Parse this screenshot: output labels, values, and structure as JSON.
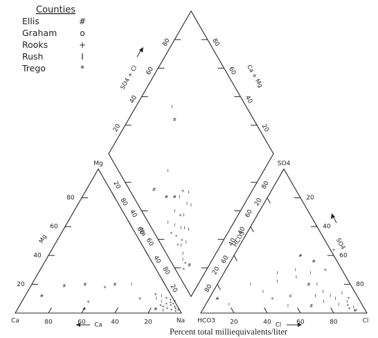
{
  "legend": {
    "title": "Counties",
    "items": [
      {
        "name": "Ellis",
        "symbol": "#"
      },
      {
        "name": "Graham",
        "symbol": "o"
      },
      {
        "name": "Rooks",
        "symbol": "+"
      },
      {
        "name": "Rush",
        "symbol": "I"
      },
      {
        "name": "Trego",
        "symbol": "*"
      }
    ]
  },
  "caption": "Percent total milliequivalents/liter",
  "cation_triangle": {
    "apex_label": "Mg",
    "left_corner_label": "Ca",
    "right_corner_label": "Na",
    "left_axis_name": "Mg",
    "right_axis_name": "Na",
    "bottom_axis_name": "Ca",
    "left_ticks": [
      "20",
      "40",
      "60",
      "80"
    ],
    "right_ticks": [
      "20",
      "40",
      "60",
      "80"
    ],
    "bottom_ticks": [
      "80",
      "60",
      "40",
      "20"
    ]
  },
  "anion_triangle": {
    "apex_label": "SO4",
    "left_corner_label": "HCO3",
    "right_corner_label": "Cl",
    "left_axis_name": "HCO3",
    "right_axis_name": "SO4",
    "bottom_axis_name": "Cl",
    "left_ticks": [
      "80",
      "60",
      "40",
      "20"
    ],
    "right_ticks": [
      "80",
      "60",
      "40",
      "20"
    ],
    "bottom_ticks": [
      "20",
      "40",
      "60",
      "80"
    ]
  },
  "diamond": {
    "upper_left_axis_name": "SO4 + Cl",
    "upper_right_axis_name": "Ca + Mg",
    "upper_left_ticks": [
      "80",
      "60",
      "40",
      "20"
    ],
    "upper_right_ticks": [
      "80",
      "60",
      "40",
      "20"
    ]
  },
  "points": {
    "cation": [
      {
        "s": "#",
        "na": 0.83,
        "mg": 0.03
      },
      {
        "s": "*",
        "na": 0.85,
        "mg": 0.05
      },
      {
        "s": "*",
        "na": 0.87,
        "mg": 0.04
      },
      {
        "s": "*",
        "na": 0.88,
        "mg": 0.06
      },
      {
        "s": "*",
        "na": 0.9,
        "mg": 0.03
      },
      {
        "s": "*",
        "na": 0.91,
        "mg": 0.05
      },
      {
        "s": "*",
        "na": 0.93,
        "mg": 0.02
      },
      {
        "s": "*",
        "na": 0.95,
        "mg": 0.03
      },
      {
        "s": "*",
        "na": 0.96,
        "mg": 0.01
      },
      {
        "s": "*",
        "na": 0.92,
        "mg": 0.08
      },
      {
        "s": "*",
        "na": 0.89,
        "mg": 0.09
      },
      {
        "s": "*",
        "na": 0.86,
        "mg": 0.1
      },
      {
        "s": "*",
        "na": 0.94,
        "mg": 0.04
      },
      {
        "s": "*",
        "na": 0.97,
        "mg": 0.02
      },
      {
        "s": "I",
        "na": 0.84,
        "mg": 0.08
      },
      {
        "s": "I",
        "na": 0.82,
        "mg": 0.12
      },
      {
        "s": "I",
        "na": 0.8,
        "mg": 0.1
      },
      {
        "s": "+",
        "na": 0.78,
        "mg": 0.13
      },
      {
        "s": "I",
        "na": 0.6,
        "mg": 0.2
      },
      {
        "s": "#",
        "na": 0.5,
        "mg": 0.2
      },
      {
        "s": "+",
        "na": 0.45,
        "mg": 0.18
      },
      {
        "s": "#",
        "na": 0.32,
        "mg": 0.2
      },
      {
        "s": "+",
        "na": 0.4,
        "mg": 0.08
      },
      {
        "s": "#",
        "na": 0.4,
        "mg": 0.03
      },
      {
        "s": "#",
        "na": 0.2,
        "mg": 0.19
      },
      {
        "s": "#",
        "na": 0.1,
        "mg": 0.12
      },
      {
        "s": "+",
        "na": 0.7,
        "mg": 0.1
      },
      {
        "s": "I",
        "na": 0.88,
        "mg": 0.02
      },
      {
        "s": "*",
        "na": 0.9,
        "mg": 0.07
      },
      {
        "s": "*",
        "na": 0.92,
        "mg": 0.06
      }
    ],
    "anion": [
      {
        "s": "#",
        "cl": 0.05,
        "so4": 0.1
      },
      {
        "s": "I",
        "cl": 0.14,
        "so4": 0.06
      },
      {
        "s": "I",
        "cl": 0.2,
        "so4": 0.2
      },
      {
        "s": "I",
        "cl": 0.3,
        "so4": 0.15
      },
      {
        "s": "I",
        "cl": 0.35,
        "so4": 0.22
      },
      {
        "s": "+",
        "cl": 0.38,
        "so4": 0.1
      },
      {
        "s": "I",
        "cl": 0.45,
        "so4": 0.25
      },
      {
        "s": "o",
        "cl": 0.48,
        "so4": 0.12
      },
      {
        "s": "I",
        "cl": 0.5,
        "so4": 0.05
      },
      {
        "s": "I",
        "cl": 0.42,
        "so4": 0.3
      },
      {
        "s": "#",
        "cl": 0.4,
        "so4": 0.4
      },
      {
        "s": "I",
        "cl": 0.52,
        "so4": 0.28
      },
      {
        "s": "#",
        "cl": 0.55,
        "so4": 0.2
      },
      {
        "s": "I",
        "cl": 0.6,
        "so4": 0.2
      },
      {
        "s": "I",
        "cl": 0.63,
        "so4": 0.12
      },
      {
        "s": "+",
        "cl": 0.6,
        "so4": 0.3
      },
      {
        "s": "#",
        "cl": 0.64,
        "so4": 0.05
      },
      {
        "s": "I",
        "cl": 0.7,
        "so4": 0.08
      },
      {
        "s": "I",
        "cl": 0.72,
        "so4": 0.12
      },
      {
        "s": "I",
        "cl": 0.76,
        "so4": 0.1
      },
      {
        "s": "I",
        "cl": 0.8,
        "so4": 0.06
      },
      {
        "s": "I",
        "cl": 0.84,
        "so4": 0.08
      },
      {
        "s": "*",
        "cl": 0.86,
        "so4": 0.05
      },
      {
        "s": "*",
        "cl": 0.88,
        "so4": 0.03
      },
      {
        "s": "*",
        "cl": 0.84,
        "so4": 0.1
      },
      {
        "s": "I",
        "cl": 0.9,
        "so4": 0.04
      },
      {
        "s": "I",
        "cl": 0.78,
        "so4": 0.14
      },
      {
        "s": "#",
        "cl": 0.5,
        "so4": 0.36
      },
      {
        "s": "+",
        "cl": 0.58,
        "so4": 0.44
      },
      {
        "s": "I",
        "cl": 0.66,
        "so4": 0.15
      },
      {
        "s": "I",
        "cl": 0.32,
        "so4": 0.28
      },
      {
        "s": "#",
        "cl": 0.92,
        "so4": 0.02
      }
    ],
    "diamond": [
      {
        "s": "#",
        "ca": 0.15,
        "so": 0.6
      },
      {
        "s": "#",
        "ca": 0.2,
        "so": 0.5
      },
      {
        "s": "I",
        "ca": 0.32,
        "so": 0.32
      },
      {
        "s": "I",
        "ca": 0.3,
        "so": 0.58
      },
      {
        "s": "#",
        "ca": 0.52,
        "so": 0.72
      },
      {
        "s": "I",
        "ca": 0.55,
        "so": 0.78
      },
      {
        "s": "#",
        "ca": 0.1,
        "so": 0.12
      },
      {
        "s": "*",
        "ca": 0.08,
        "so": 0.15
      },
      {
        "s": "I",
        "ca": 0.1,
        "so": 0.2
      },
      {
        "s": "I",
        "ca": 0.12,
        "so": 0.24
      },
      {
        "s": "*",
        "ca": 0.05,
        "so": 0.14
      },
      {
        "s": "*",
        "ca": 0.12,
        "so": 0.3
      },
      {
        "s": "I",
        "ca": 0.15,
        "so": 0.35
      },
      {
        "s": "I",
        "ca": 0.18,
        "so": 0.3
      },
      {
        "s": "*",
        "ca": 0.1,
        "so": 0.34
      },
      {
        "s": "I",
        "ca": 0.2,
        "so": 0.4
      },
      {
        "s": "#",
        "ca": 0.25,
        "so": 0.45
      },
      {
        "s": "+",
        "ca": 0.22,
        "so": 0.35
      },
      {
        "s": "I",
        "ca": 0.28,
        "so": 0.42
      },
      {
        "s": "*",
        "ca": 0.14,
        "so": 0.25
      },
      {
        "s": "I",
        "ca": 0.16,
        "so": 0.22
      },
      {
        "s": "I",
        "ca": 0.2,
        "so": 0.28
      },
      {
        "s": "I",
        "ca": 0.08,
        "so": 0.18
      },
      {
        "s": "*",
        "ca": 0.1,
        "so": 0.26
      },
      {
        "s": "I",
        "ca": 0.22,
        "so": 0.25
      },
      {
        "s": "I",
        "ca": 0.3,
        "so": 0.35
      },
      {
        "s": "+",
        "ca": 0.32,
        "so": 0.42
      },
      {
        "s": "I",
        "ca": 0.35,
        "so": 0.38
      },
      {
        "s": "I",
        "ca": 0.12,
        "so": 0.4
      },
      {
        "s": "I",
        "ca": 0.24,
        "so": 0.33
      }
    ]
  }
}
